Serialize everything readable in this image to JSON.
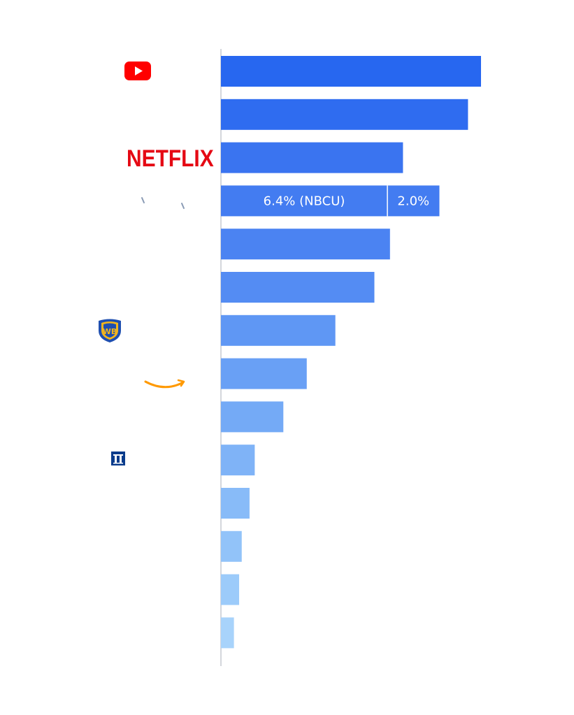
{
  "chart_data": {
    "type": "bar",
    "orientation": "horizontal",
    "categories": [
      "YouTube",
      "",
      "Netflix",
      "",
      "",
      "",
      "Warner Bros.",
      "Amazon",
      "",
      "Paramount",
      "",
      "",
      "",
      ""
    ],
    "values": [
      10.0,
      9.5,
      7.0,
      8.4,
      6.5,
      5.9,
      4.4,
      3.3,
      2.4,
      1.3,
      1.1,
      0.8,
      0.7,
      0.5
    ],
    "stacked_row": {
      "index": 3,
      "segments": [
        {
          "label": "6.4% (NBCU)",
          "value": 6.4
        },
        {
          "label": "2.0%",
          "value": 2.0
        }
      ]
    },
    "xlim": [
      0,
      10.2
    ],
    "colors": [
      "#2767f0",
      "#2f6cf0",
      "#3a74f0",
      "#437cf1",
      "#4b83f2",
      "#548cf3",
      "#5f97f4",
      "#69a0f5",
      "#74aaf6",
      "#7fb3f7",
      "#88bbf8",
      "#92c3f9",
      "#9ccbfa",
      "#a8d3fb"
    ]
  },
  "logos": {
    "youtube": {
      "name": "youtube-logo",
      "color": "#ff0000"
    },
    "netflix": {
      "text": "NETFLIX",
      "color": "#e50914"
    },
    "warner": {
      "name": "warner-bros-logo",
      "color": "#1a4ba8"
    },
    "amazon": {
      "name": "amazon-smile-logo",
      "color": "#ff9900"
    },
    "paramount": {
      "name": "paramount-logo",
      "color": "#0a3c8c"
    }
  }
}
